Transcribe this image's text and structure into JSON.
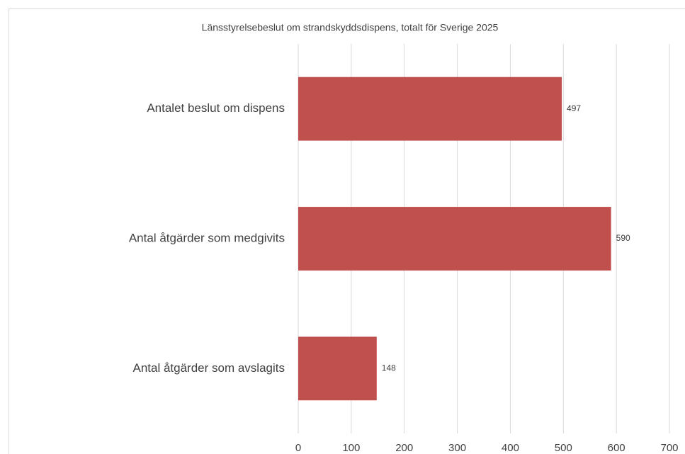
{
  "chart_data": {
    "type": "bar",
    "orientation": "horizontal",
    "title": "Länsstyrelsebeslut om strandskyddsdispens, totalt för Sverige 2025",
    "categories": [
      "Antalet beslut om dispens",
      "Antal åtgärder som medgivits",
      "Antal åtgärder som avslagits"
    ],
    "values": [
      497,
      590,
      148
    ],
    "color": "#c0504d",
    "xlim": [
      0,
      700
    ],
    "xticks": [
      0,
      100,
      200,
      300,
      400,
      500,
      600,
      700
    ],
    "grid": true
  }
}
